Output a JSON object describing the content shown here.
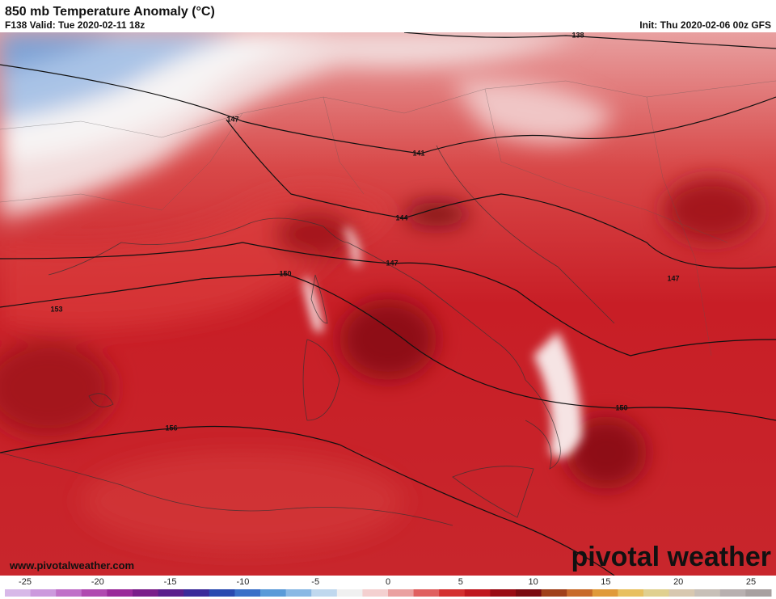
{
  "header": {
    "title": "850 mb Temperature Anomaly (°C)",
    "valid": "F138 Valid: Tue 2020-02-11 18z",
    "init": "Init: Thu 2020-02-06 00z GFS"
  },
  "contour_labels": [
    "138",
    "147",
    "141",
    "144",
    "147",
    "150",
    "153",
    "156",
    "150",
    "147"
  ],
  "footer": {
    "website": "www.pivotalweather.com",
    "logo": "pivotal weather"
  },
  "colorbar": {
    "ticks": [
      -25,
      -20,
      -15,
      -10,
      -5,
      0,
      5,
      10,
      15,
      20,
      25
    ]
  }
}
